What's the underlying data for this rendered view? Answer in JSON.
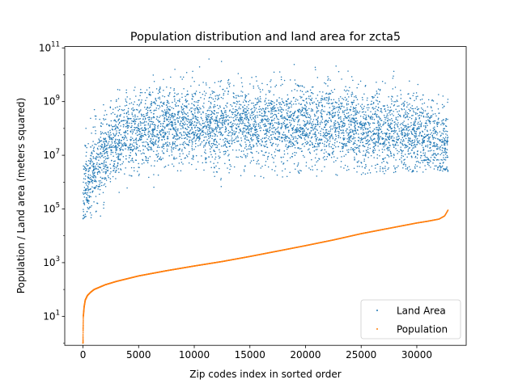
{
  "chart_data": {
    "type": "scatter",
    "title": "Population distribution and land area for zcta5",
    "xlabel": "Zip codes index in sorted order",
    "ylabel": "Population / Land area (meters squared)",
    "yscale": "log",
    "xlim": [
      -1640,
      34440
    ],
    "ylim_exp": [
      -0.08,
      11.05
    ],
    "x_ticks": [
      0,
      5000,
      10000,
      15000,
      20000,
      25000,
      30000
    ],
    "x_tick_labels": [
      "0",
      "5000",
      "10000",
      "15000",
      "20000",
      "25000",
      "30000"
    ],
    "y_tick_exps": [
      1,
      3,
      5,
      7,
      9,
      11
    ],
    "grid": false,
    "legend_position": "lower-right",
    "series": [
      {
        "name": "Land Area",
        "color": "#1f77b4",
        "marker": "dot",
        "n_points": 32800,
        "log10_center_by_x": [
          [
            0,
            5.2
          ],
          [
            300,
            5.9
          ],
          [
            1000,
            6.6
          ],
          [
            3000,
            7.6
          ],
          [
            6000,
            8.0
          ],
          [
            10000,
            8.1
          ],
          [
            15000,
            8.15
          ],
          [
            20000,
            8.15
          ],
          [
            25000,
            8.0
          ],
          [
            30000,
            7.75
          ],
          [
            32800,
            7.4
          ]
        ],
        "log10_spread": 0.75,
        "log10_floor_by_x": [
          [
            0,
            4.6
          ],
          [
            1000,
            4.7
          ],
          [
            5000,
            4.8
          ],
          [
            8000,
            5.2
          ],
          [
            12000,
            5.8
          ],
          [
            20000,
            6.2
          ],
          [
            32800,
            6.4
          ]
        ],
        "log10_max": 10.6
      },
      {
        "name": "Population",
        "color": "#ff7f0e",
        "marker": "dot",
        "n_points": 32800,
        "x": [
          0,
          10,
          30,
          100,
          200,
          400,
          700,
          1000,
          2000,
          3000,
          5000,
          7500,
          10000,
          12500,
          15000,
          17500,
          20000,
          22500,
          25000,
          27500,
          30000,
          31000,
          32000,
          32500,
          32800
        ],
        "y": [
          1,
          3,
          10,
          22,
          40,
          60,
          80,
          100,
          150,
          200,
          320,
          500,
          750,
          1100,
          1700,
          2700,
          4300,
          7000,
          12000,
          19000,
          30000,
          35000,
          42000,
          55000,
          90000
        ]
      }
    ]
  }
}
